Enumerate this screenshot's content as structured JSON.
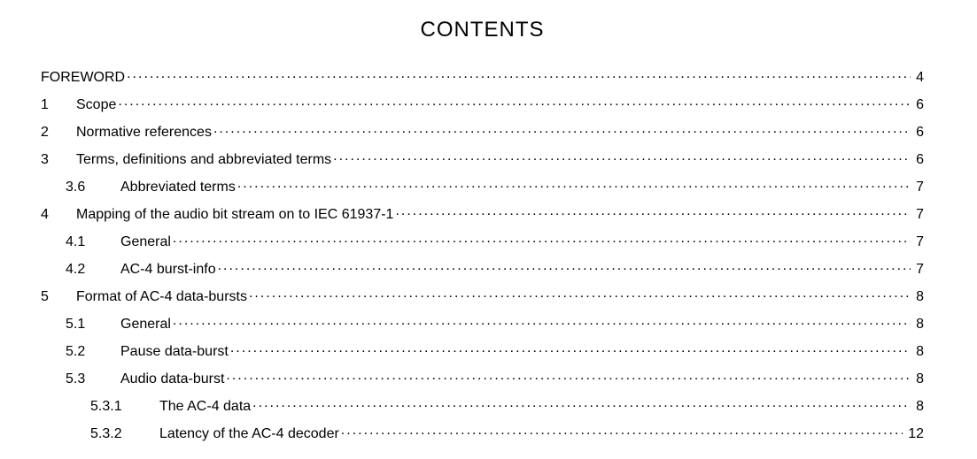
{
  "title": "CONTENTS",
  "entries": [
    {
      "level": 0,
      "num": "",
      "label": "FOREWORD",
      "page": "4"
    },
    {
      "level": 1,
      "num": "1",
      "label": "Scope",
      "page": "6"
    },
    {
      "level": 1,
      "num": "2",
      "label": "Normative references",
      "page": "6"
    },
    {
      "level": 1,
      "num": "3",
      "label": "Terms, definitions and abbreviated terms",
      "page": "6"
    },
    {
      "level": 2,
      "num": "3.6",
      "label": "Abbreviated terms",
      "page": "7"
    },
    {
      "level": 1,
      "num": "4",
      "label": "Mapping of the audio bit stream on to IEC 61937-1",
      "page": "7"
    },
    {
      "level": 2,
      "num": "4.1",
      "label": "General",
      "page": "7"
    },
    {
      "level": 2,
      "num": "4.2",
      "label": "AC-4 burst-info",
      "page": "7"
    },
    {
      "level": 1,
      "num": "5",
      "label": "Format of AC-4 data-bursts",
      "page": "8"
    },
    {
      "level": 2,
      "num": "5.1",
      "label": "General",
      "page": "8"
    },
    {
      "level": 2,
      "num": "5.2",
      "label": "Pause data-burst",
      "page": "8"
    },
    {
      "level": 2,
      "num": "5.3",
      "label": "Audio data-burst",
      "page": "8"
    },
    {
      "level": 3,
      "num": "5.3.1",
      "label": "The AC-4 data",
      "page": "8"
    },
    {
      "level": 3,
      "num": "5.3.2",
      "label": "Latency of the AC-4 decoder",
      "page": "12"
    }
  ]
}
